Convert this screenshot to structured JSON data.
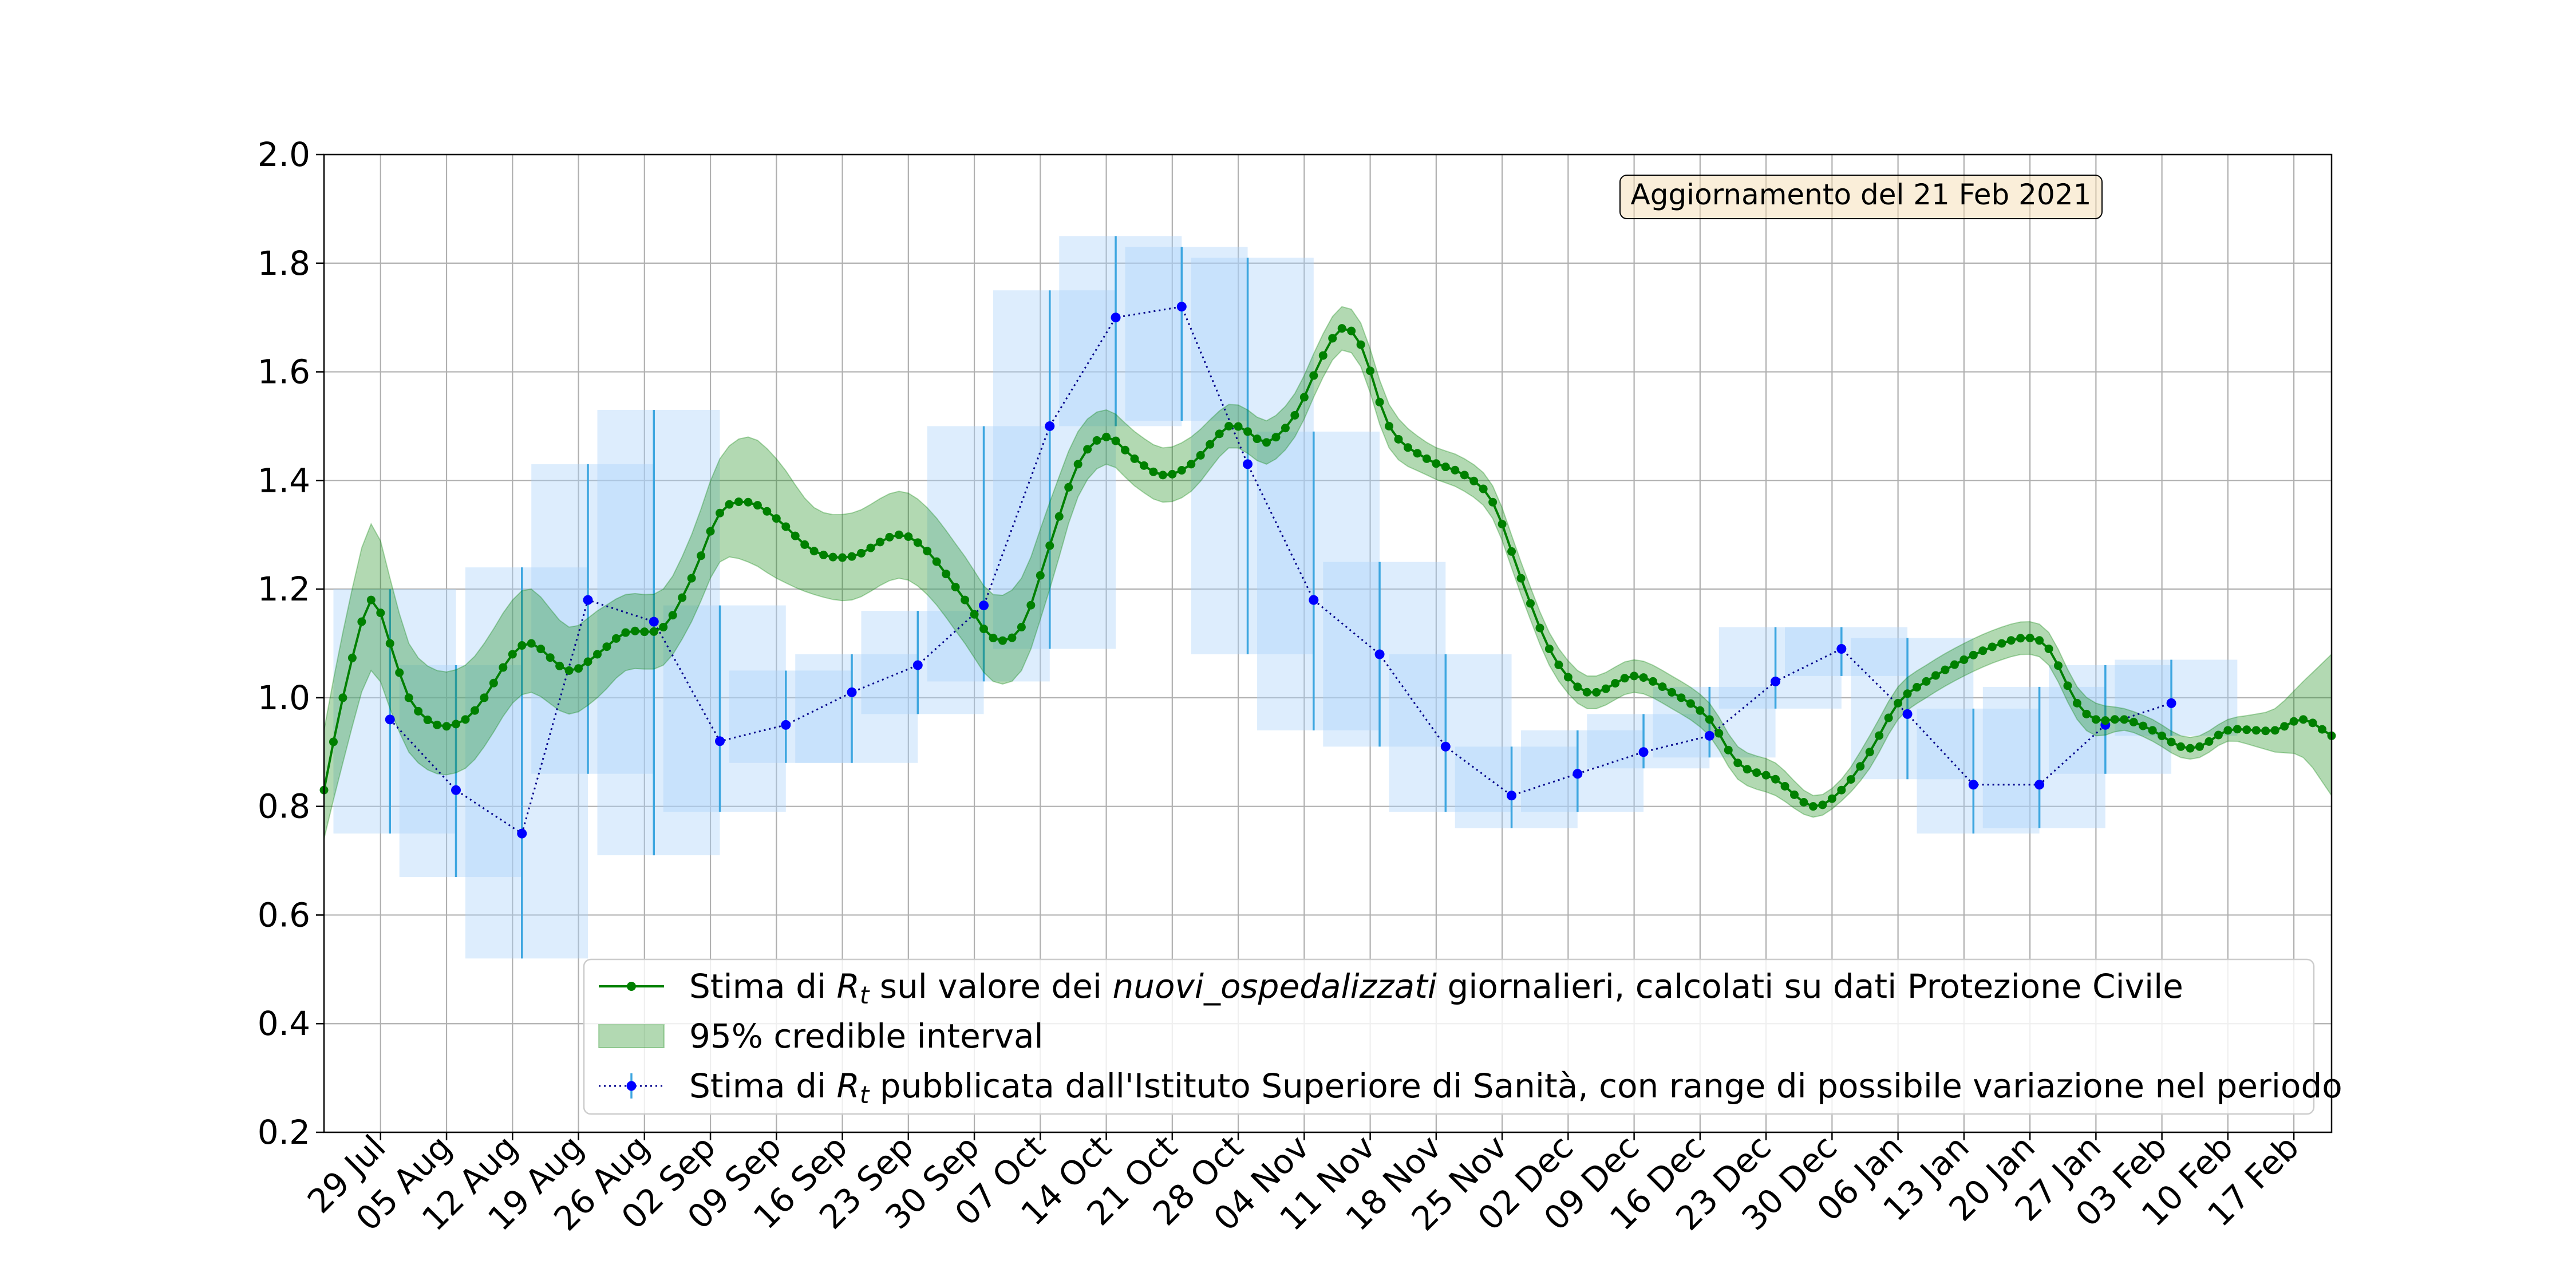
{
  "chart_data": {
    "type": "line",
    "annotation": "Aggiornamento del 21 Feb 2021",
    "xlabel": "",
    "ylabel": "",
    "ylim": [
      0.2,
      2.0
    ],
    "grid": true,
    "legend_placement": "lower-right",
    "y_ticks": [
      "0.2",
      "0.4",
      "0.6",
      "0.8",
      "1.0",
      "1.2",
      "1.4",
      "1.6",
      "1.8",
      "2.0"
    ],
    "x_range": [
      "2020-07-23",
      "2021-02-21"
    ],
    "x_ticks": [
      {
        "date": "2020-07-29",
        "label": "29 Jul"
      },
      {
        "date": "2020-08-05",
        "label": "05 Aug"
      },
      {
        "date": "2020-08-12",
        "label": "12 Aug"
      },
      {
        "date": "2020-08-19",
        "label": "19 Aug"
      },
      {
        "date": "2020-08-26",
        "label": "26 Aug"
      },
      {
        "date": "2020-09-02",
        "label": "02 Sep"
      },
      {
        "date": "2020-09-09",
        "label": "09 Sep"
      },
      {
        "date": "2020-09-16",
        "label": "16 Sep"
      },
      {
        "date": "2020-09-23",
        "label": "23 Sep"
      },
      {
        "date": "2020-09-30",
        "label": "30 Sep"
      },
      {
        "date": "2020-10-07",
        "label": "07 Oct"
      },
      {
        "date": "2020-10-14",
        "label": "14 Oct"
      },
      {
        "date": "2020-10-21",
        "label": "21 Oct"
      },
      {
        "date": "2020-10-28",
        "label": "28 Oct"
      },
      {
        "date": "2020-11-04",
        "label": "04 Nov"
      },
      {
        "date": "2020-11-11",
        "label": "11 Nov"
      },
      {
        "date": "2020-11-18",
        "label": "18 Nov"
      },
      {
        "date": "2020-11-25",
        "label": "25 Nov"
      },
      {
        "date": "2020-12-02",
        "label": "02 Dec"
      },
      {
        "date": "2020-12-09",
        "label": "09 Dec"
      },
      {
        "date": "2020-12-16",
        "label": "16 Dec"
      },
      {
        "date": "2020-12-23",
        "label": "23 Dec"
      },
      {
        "date": "2020-12-30",
        "label": "30 Dec"
      },
      {
        "date": "2021-01-06",
        "label": "06 Jan"
      },
      {
        "date": "2021-01-13",
        "label": "13 Jan"
      },
      {
        "date": "2021-01-20",
        "label": "20 Jan"
      },
      {
        "date": "2021-01-27",
        "label": "27 Jan"
      },
      {
        "date": "2021-02-03",
        "label": "03 Feb"
      },
      {
        "date": "2021-02-10",
        "label": "10 Feb"
      },
      {
        "date": "2021-02-17",
        "label": "17 Feb"
      }
    ],
    "legend": [
      {
        "kind": "line",
        "color": "#008000",
        "parts": [
          {
            "text": "Stima di ",
            "style": "normal"
          },
          {
            "text": "R",
            "style": "italic"
          },
          {
            "text": "t",
            "style": "italic-sub"
          },
          {
            "text": " sul valore dei ",
            "style": "normal"
          },
          {
            "text": "nuovi_ospedalizzati",
            "style": "italic"
          },
          {
            "text": " giornalieri, calcolati su dati Protezione Civile",
            "style": "normal"
          }
        ]
      },
      {
        "kind": "patch",
        "color": "#008000",
        "parts": [
          {
            "text": "95% credible interval",
            "style": "normal"
          }
        ]
      },
      {
        "kind": "errorbar",
        "color": "#0000ff",
        "parts": [
          {
            "text": "Stima di ",
            "style": "normal"
          },
          {
            "text": "R",
            "style": "italic"
          },
          {
            "text": "t",
            "style": "italic-sub"
          },
          {
            "text": " pubblicata dall'Istituto Superiore di Sanità, con range di possibile variazione nel periodo",
            "style": "normal"
          }
        ]
      }
    ],
    "series": [
      {
        "key": "rt_hosp",
        "kind": "line_with_band",
        "color": "#008000",
        "start_date": "2020-07-23",
        "anchors": [
          [
            "2020-07-23",
            0.83,
            0.74,
            0.94
          ],
          [
            "2020-07-25",
            1.0,
            0.88,
            1.12
          ],
          [
            "2020-07-28",
            1.18,
            1.05,
            1.32
          ],
          [
            "2020-07-30",
            1.1,
            0.98,
            1.22
          ],
          [
            "2020-08-01",
            1.0,
            0.9,
            1.1
          ],
          [
            "2020-08-04",
            0.95,
            0.86,
            1.05
          ],
          [
            "2020-08-07",
            0.96,
            0.87,
            1.06
          ],
          [
            "2020-08-09",
            1.0,
            0.91,
            1.1
          ],
          [
            "2020-08-12",
            1.08,
            0.99,
            1.18
          ],
          [
            "2020-08-14",
            1.1,
            1.01,
            1.2
          ],
          [
            "2020-08-18",
            1.05,
            0.97,
            1.13
          ],
          [
            "2020-08-21",
            1.08,
            1.0,
            1.16
          ],
          [
            "2020-08-24",
            1.12,
            1.05,
            1.19
          ],
          [
            "2020-08-28",
            1.13,
            1.06,
            1.2
          ],
          [
            "2020-08-31",
            1.22,
            1.14,
            1.3
          ],
          [
            "2020-09-03",
            1.34,
            1.25,
            1.44
          ],
          [
            "2020-09-06",
            1.36,
            1.25,
            1.48
          ],
          [
            "2020-09-09",
            1.33,
            1.22,
            1.44
          ],
          [
            "2020-09-13",
            1.27,
            1.19,
            1.35
          ],
          [
            "2020-09-17",
            1.26,
            1.18,
            1.34
          ],
          [
            "2020-09-22",
            1.3,
            1.22,
            1.38
          ],
          [
            "2020-09-25",
            1.27,
            1.19,
            1.35
          ],
          [
            "2020-09-29",
            1.18,
            1.1,
            1.26
          ],
          [
            "2020-10-02",
            1.11,
            1.03,
            1.19
          ],
          [
            "2020-10-05",
            1.13,
            1.05,
            1.22
          ],
          [
            "2020-10-08",
            1.28,
            1.2,
            1.36
          ],
          [
            "2020-10-11",
            1.43,
            1.37,
            1.49
          ],
          [
            "2020-10-14",
            1.48,
            1.43,
            1.53
          ],
          [
            "2020-10-17",
            1.44,
            1.39,
            1.49
          ],
          [
            "2020-10-20",
            1.41,
            1.36,
            1.46
          ],
          [
            "2020-10-23",
            1.43,
            1.38,
            1.48
          ],
          [
            "2020-10-27",
            1.5,
            1.46,
            1.54
          ],
          [
            "2020-10-29",
            1.49,
            1.45,
            1.53
          ],
          [
            "2020-10-31",
            1.47,
            1.43,
            1.51
          ],
          [
            "2020-11-03",
            1.52,
            1.48,
            1.56
          ],
          [
            "2020-11-06",
            1.63,
            1.59,
            1.67
          ],
          [
            "2020-11-08",
            1.68,
            1.64,
            1.72
          ],
          [
            "2020-11-10",
            1.65,
            1.61,
            1.69
          ],
          [
            "2020-11-13",
            1.5,
            1.46,
            1.54
          ],
          [
            "2020-11-17",
            1.44,
            1.41,
            1.47
          ],
          [
            "2020-11-21",
            1.41,
            1.38,
            1.44
          ],
          [
            "2020-11-24",
            1.36,
            1.33,
            1.39
          ],
          [
            "2020-11-27",
            1.22,
            1.19,
            1.25
          ],
          [
            "2020-11-30",
            1.09,
            1.06,
            1.12
          ],
          [
            "2020-12-03",
            1.02,
            0.99,
            1.05
          ],
          [
            "2020-12-05",
            1.01,
            0.98,
            1.04
          ],
          [
            "2020-12-09",
            1.04,
            1.01,
            1.07
          ],
          [
            "2020-12-13",
            1.01,
            0.98,
            1.04
          ],
          [
            "2020-12-17",
            0.96,
            0.93,
            0.99
          ],
          [
            "2020-12-20",
            0.88,
            0.85,
            0.91
          ],
          [
            "2020-12-24",
            0.85,
            0.82,
            0.88
          ],
          [
            "2020-12-28",
            0.8,
            0.78,
            0.82
          ],
          [
            "2020-12-31",
            0.83,
            0.81,
            0.85
          ],
          [
            "2021-01-03",
            0.9,
            0.87,
            0.93
          ],
          [
            "2021-01-06",
            0.99,
            0.96,
            1.02
          ],
          [
            "2021-01-09",
            1.03,
            1.0,
            1.06
          ],
          [
            "2021-01-13",
            1.07,
            1.04,
            1.1
          ],
          [
            "2021-01-17",
            1.1,
            1.07,
            1.13
          ],
          [
            "2021-01-20",
            1.11,
            1.08,
            1.14
          ],
          [
            "2021-01-22",
            1.09,
            1.06,
            1.12
          ],
          [
            "2021-01-25",
            0.99,
            0.96,
            1.02
          ],
          [
            "2021-01-27",
            0.96,
            0.93,
            0.99
          ],
          [
            "2021-01-30",
            0.96,
            0.94,
            0.98
          ],
          [
            "2021-02-02",
            0.94,
            0.92,
            0.96
          ],
          [
            "2021-02-05",
            0.91,
            0.89,
            0.93
          ],
          [
            "2021-02-07",
            0.91,
            0.89,
            0.93
          ],
          [
            "2021-02-10",
            0.94,
            0.92,
            0.96
          ],
          [
            "2021-02-13",
            0.94,
            0.91,
            0.97
          ],
          [
            "2021-02-15",
            0.94,
            0.9,
            0.98
          ],
          [
            "2021-02-18",
            0.96,
            0.89,
            1.03
          ],
          [
            "2021-02-21",
            0.93,
            0.82,
            1.08
          ]
        ]
      },
      {
        "key": "rt_iss",
        "kind": "errorbar",
        "color": "#0000ff",
        "range_color": "#3da6e0",
        "box_color": "#a9d1fa",
        "points": [
          {
            "date": "2020-07-30",
            "y": 0.96,
            "low": 0.75,
            "high": 1.2,
            "start": "2020-07-24",
            "end": "2020-08-06"
          },
          {
            "date": "2020-08-06",
            "y": 0.83,
            "low": 0.67,
            "high": 1.06,
            "start": "2020-07-31",
            "end": "2020-08-13"
          },
          {
            "date": "2020-08-13",
            "y": 0.75,
            "low": 0.52,
            "high": 1.24,
            "start": "2020-08-07",
            "end": "2020-08-20"
          },
          {
            "date": "2020-08-20",
            "y": 1.18,
            "low": 0.86,
            "high": 1.43,
            "start": "2020-08-14",
            "end": "2020-08-27"
          },
          {
            "date": "2020-08-27",
            "y": 1.14,
            "low": 0.71,
            "high": 1.53,
            "start": "2020-08-21",
            "end": "2020-09-03"
          },
          {
            "date": "2020-09-03",
            "y": 0.92,
            "low": 0.79,
            "high": 1.17,
            "start": "2020-08-28",
            "end": "2020-09-10"
          },
          {
            "date": "2020-09-10",
            "y": 0.95,
            "low": 0.88,
            "high": 1.05,
            "start": "2020-09-04",
            "end": "2020-09-17"
          },
          {
            "date": "2020-09-17",
            "y": 1.01,
            "low": 0.88,
            "high": 1.08,
            "start": "2020-09-11",
            "end": "2020-09-24"
          },
          {
            "date": "2020-09-24",
            "y": 1.06,
            "low": 0.97,
            "high": 1.16,
            "start": "2020-09-18",
            "end": "2020-10-01"
          },
          {
            "date": "2020-10-01",
            "y": 1.17,
            "low": 1.03,
            "high": 1.5,
            "start": "2020-09-25",
            "end": "2020-10-08"
          },
          {
            "date": "2020-10-08",
            "y": 1.5,
            "low": 1.09,
            "high": 1.75,
            "start": "2020-10-02",
            "end": "2020-10-15"
          },
          {
            "date": "2020-10-15",
            "y": 1.7,
            "low": 1.5,
            "high": 1.85,
            "start": "2020-10-09",
            "end": "2020-10-22"
          },
          {
            "date": "2020-10-22",
            "y": 1.72,
            "low": 1.51,
            "high": 1.83,
            "start": "2020-10-16",
            "end": "2020-10-29"
          },
          {
            "date": "2020-10-29",
            "y": 1.43,
            "low": 1.08,
            "high": 1.81,
            "start": "2020-10-23",
            "end": "2020-11-05"
          },
          {
            "date": "2020-11-05",
            "y": 1.18,
            "low": 0.94,
            "high": 1.49,
            "start": "2020-10-30",
            "end": "2020-11-12"
          },
          {
            "date": "2020-11-12",
            "y": 1.08,
            "low": 0.91,
            "high": 1.25,
            "start": "2020-11-06",
            "end": "2020-11-19"
          },
          {
            "date": "2020-11-19",
            "y": 0.91,
            "low": 0.79,
            "high": 1.08,
            "start": "2020-11-13",
            "end": "2020-11-26"
          },
          {
            "date": "2020-11-26",
            "y": 0.82,
            "low": 0.76,
            "high": 0.91,
            "start": "2020-11-20",
            "end": "2020-12-03"
          },
          {
            "date": "2020-12-03",
            "y": 0.86,
            "low": 0.79,
            "high": 0.94,
            "start": "2020-11-27",
            "end": "2020-12-10"
          },
          {
            "date": "2020-12-10",
            "y": 0.9,
            "low": 0.87,
            "high": 0.97,
            "start": "2020-12-04",
            "end": "2020-12-17"
          },
          {
            "date": "2020-12-17",
            "y": 0.93,
            "low": 0.89,
            "high": 1.02,
            "start": "2020-12-11",
            "end": "2020-12-24"
          },
          {
            "date": "2020-12-24",
            "y": 1.03,
            "low": 0.98,
            "high": 1.13,
            "start": "2020-12-18",
            "end": "2020-12-31"
          },
          {
            "date": "2020-12-31",
            "y": 1.09,
            "low": 1.04,
            "high": 1.13,
            "start": "2020-12-25",
            "end": "2021-01-07"
          },
          {
            "date": "2021-01-07",
            "y": 0.97,
            "low": 0.85,
            "high": 1.11,
            "start": "2021-01-01",
            "end": "2021-01-14"
          },
          {
            "date": "2021-01-14",
            "y": 0.84,
            "low": 0.75,
            "high": 0.98,
            "start": "2021-01-08",
            "end": "2021-01-21"
          },
          {
            "date": "2021-01-21",
            "y": 0.84,
            "low": 0.76,
            "high": 1.02,
            "start": "2021-01-15",
            "end": "2021-01-28"
          },
          {
            "date": "2021-01-28",
            "y": 0.95,
            "low": 0.86,
            "high": 1.06,
            "start": "2021-01-22",
            "end": "2021-02-04"
          },
          {
            "date": "2021-02-04",
            "y": 0.99,
            "low": 0.93,
            "high": 1.07,
            "start": "2021-01-29",
            "end": "2021-02-11"
          }
        ]
      }
    ]
  }
}
